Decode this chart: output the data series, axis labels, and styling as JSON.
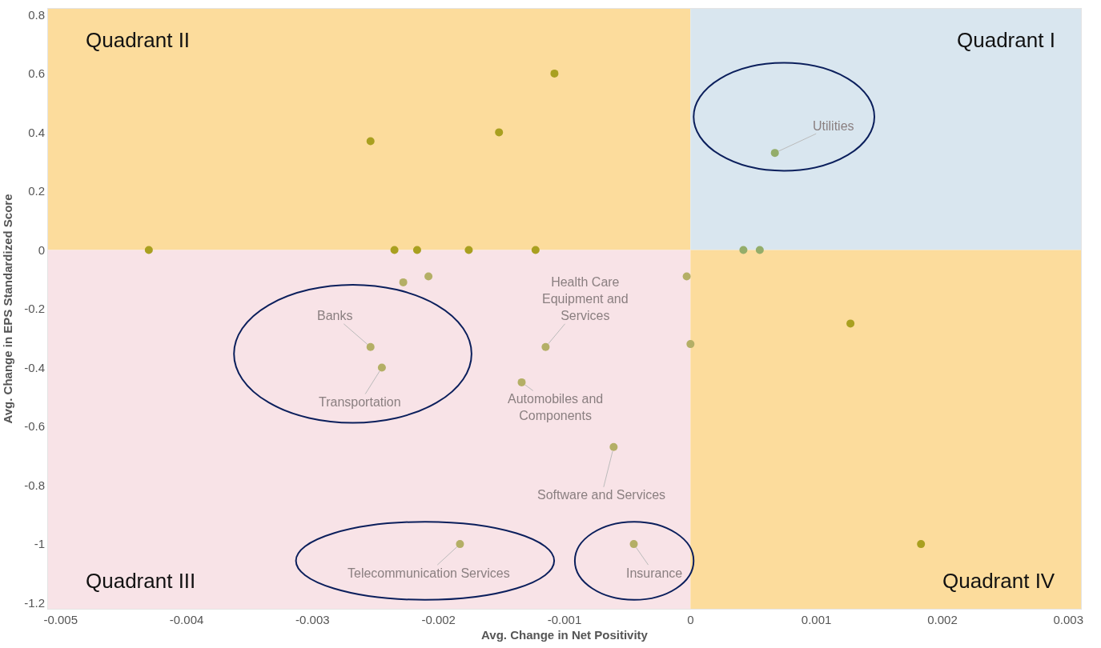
{
  "chart_data": {
    "type": "scatter",
    "xlabel": "Avg. Change in Net Positivity",
    "ylabel": "Avg. Change in EPS Standardized Score",
    "x": [
      -0.0043,
      -0.00254,
      -0.00152,
      -0.00108,
      -0.00235,
      -0.00217,
      -0.00176,
      -0.00123,
      -0.00228,
      -0.00208,
      -0.00254,
      -0.00245,
      -0.00115,
      -0.00134,
      -0.00061,
      -0.00183,
      -0.00045,
      -3e-05,
      0.0,
      0.00067,
      0.00042,
      0.00055,
      0.00127,
      0.00183
    ],
    "values": [
      0,
      0.37,
      0.4,
      0.6,
      0,
      0,
      0,
      0,
      -0.11,
      -0.09,
      -0.33,
      -0.4,
      -0.33,
      -0.45,
      -0.67,
      -1.0,
      -1.0,
      -0.09,
      -0.32,
      0.33,
      0,
      0,
      -0.25,
      -1.0
    ],
    "colors": [
      "#a9a020",
      "#a9a020",
      "#a9a020",
      "#a9a020",
      "#a9a020",
      "#a9a020",
      "#a9a020",
      "#a9a020",
      "#b4af66",
      "#b4af66",
      "#b4af66",
      "#b4af66",
      "#b4af66",
      "#b4af66",
      "#b4af66",
      "#b4af66",
      "#b4af66",
      "#b4af66",
      "#b4af66",
      "#94ad6a",
      "#94ad6a",
      "#94ad6a",
      "#a9a020",
      "#a9a020"
    ],
    "marker": "circle",
    "xlim": [
      -0.0051,
      0.0031
    ],
    "ylim": [
      -1.22,
      0.82
    ],
    "xticks": [
      -0.005,
      -0.004,
      -0.003,
      -0.002,
      -0.001,
      0,
      0.001,
      0.002,
      0.003
    ],
    "yticks": [
      0.8,
      0.6,
      0.4,
      0.2,
      0,
      -0.2,
      -0.4,
      -0.6,
      -0.8,
      -1,
      -1.2
    ],
    "annotations": [
      "Quadrant II",
      "Quadrant I",
      "Quadrant III",
      "Quadrant IV",
      {
        "text": "Utilities",
        "x": 0.00067,
        "y": 0.33
      },
      {
        "text": "Banks",
        "x": -0.00254,
        "y": -0.33
      },
      {
        "text": "Transportation",
        "x": -0.00245,
        "y": -0.4
      },
      {
        "text": "Health Care\nEquipment and\nServices",
        "x": -0.00115,
        "y": -0.33
      },
      {
        "text": "Automobiles and\nComponents",
        "x": -0.00134,
        "y": -0.45
      },
      {
        "text": "Software and Services",
        "x": -0.00061,
        "y": -0.67
      },
      {
        "text": "Telecommunication Services",
        "x": -0.00183,
        "y": -1.0
      },
      {
        "text": "Insurance",
        "x": -0.00045,
        "y": -1.0
      }
    ]
  }
}
